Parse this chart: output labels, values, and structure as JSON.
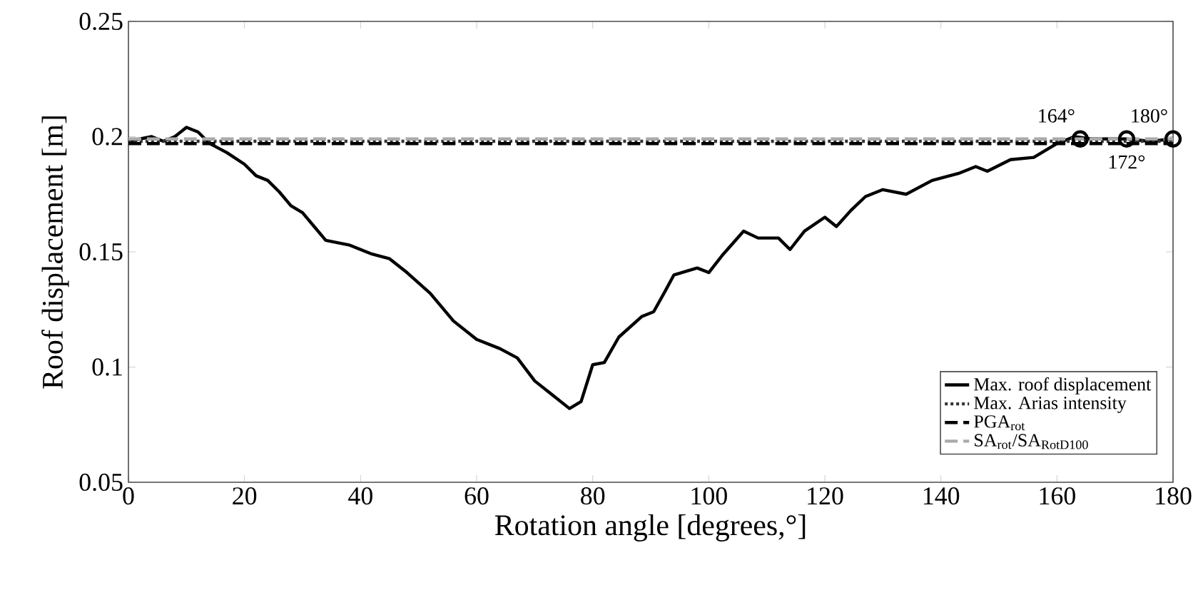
{
  "chart_data": {
    "type": "line",
    "xlabel": "Rotation angle [degrees,°]",
    "ylabel": "Roof displacement [m]",
    "xlim": [
      0,
      180
    ],
    "ylim": [
      0.05,
      0.25
    ],
    "xticks": [
      0,
      20,
      40,
      60,
      80,
      100,
      120,
      140,
      160,
      180
    ],
    "yticks": [
      0.05,
      0.1,
      0.15,
      0.2,
      0.25
    ],
    "legend": "bottom right",
    "series": [
      {
        "name": "Max. roof displacement",
        "color": "#000000",
        "line_style": "solid",
        "x": [
          0,
          2,
          4,
          6,
          8,
          10,
          12,
          14,
          17,
          20,
          22,
          24,
          26,
          28,
          30,
          32,
          34,
          36,
          38,
          42,
          45,
          48,
          52,
          56,
          60,
          64,
          67,
          70,
          72.5,
          76,
          78,
          80,
          82,
          84.5,
          88.5,
          90.5,
          92.5,
          94,
          98,
          100,
          102.5,
          106,
          108.5,
          112,
          114,
          116.5,
          120,
          122,
          124.5,
          127,
          130,
          134,
          138.5,
          143,
          146,
          148,
          152,
          156,
          160,
          163,
          166,
          170,
          172,
          176,
          180
        ],
        "values": [
          0.198,
          0.199,
          0.2,
          0.198,
          0.2,
          0.204,
          0.202,
          0.197,
          0.193,
          0.188,
          0.183,
          0.181,
          0.176,
          0.17,
          0.167,
          0.161,
          0.155,
          0.154,
          0.153,
          0.149,
          0.147,
          0.141,
          0.132,
          0.12,
          0.112,
          0.108,
          0.104,
          0.094,
          0.089,
          0.082,
          0.085,
          0.101,
          0.102,
          0.113,
          0.122,
          0.124,
          0.133,
          0.14,
          0.143,
          0.141,
          0.149,
          0.159,
          0.156,
          0.156,
          0.151,
          0.159,
          0.165,
          0.161,
          0.168,
          0.174,
          0.177,
          0.175,
          0.181,
          0.184,
          0.187,
          0.185,
          0.19,
          0.191,
          0.197,
          0.2,
          0.199,
          0.199,
          0.199,
          0.198,
          0.199
        ]
      },
      {
        "name": "Max. Arias intensity",
        "color": "#333333",
        "line_style": "dotted",
        "x": [
          0,
          180
        ],
        "values": [
          0.198,
          0.198
        ]
      },
      {
        "name": "PGA$_{rot}$",
        "color": "#000000",
        "line_style": "dashed",
        "x": [
          0,
          180
        ],
        "values": [
          0.197,
          0.197
        ]
      },
      {
        "name": "SA$_{rot}$/SA$_{RotD100}$",
        "color": "#aaaaaa",
        "line_style": "dashed",
        "x": [
          0,
          180
        ],
        "values": [
          0.199,
          0.199
        ]
      },
      {
        "type": "scatter",
        "color": "#000000",
        "marker": "circle",
        "x": [
          164,
          172,
          180
        ],
        "values": [
          0.199,
          0.199,
          0.199
        ]
      }
    ],
    "annotations": [
      {
        "text": "164°",
        "x": 164,
        "y": 0.199
      },
      {
        "text": "172°",
        "x": 172,
        "y": 0.199
      },
      {
        "text": "180°",
        "x": 180,
        "y": 0.199
      }
    ]
  }
}
